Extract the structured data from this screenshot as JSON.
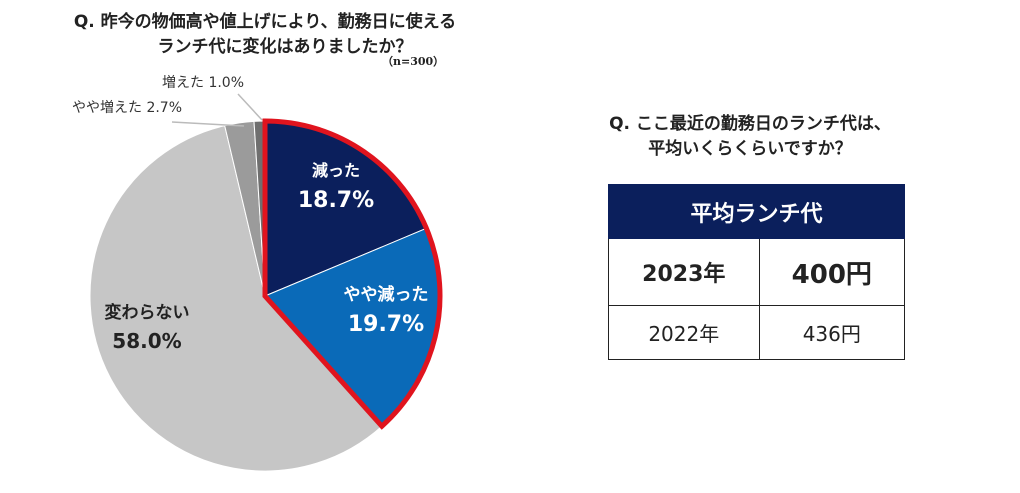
{
  "question_left": {
    "line1": "Q. 昨今の物価高や値上げにより、勤務日に使える",
    "line2": "ランチ代に変化はありましたか？",
    "note": "（n=300）"
  },
  "question_right": {
    "line1": "Q. ここ最近の勤務日のランチ代は、",
    "line2": "平均いくらくらいですか？"
  },
  "chart_data": {
    "type": "pie",
    "series": [
      {
        "label": "減った",
        "pct_text": "18.7%",
        "value": 18.7,
        "color": "#0b1f5c",
        "text_color": "#ffffff"
      },
      {
        "label": "やや減った",
        "pct_text": "19.7%",
        "value": 19.7,
        "color": "#0a6ab8",
        "text_color": "#ffffff"
      },
      {
        "label": "変わらない",
        "pct_text": "58.0%",
        "value": 58.0,
        "color": "#c6c6c6",
        "text_color": "#222222"
      },
      {
        "label": "やや増えた",
        "pct_text": "2.7%",
        "value": 2.7,
        "color": "#9b9b9b",
        "text_color": "#222222"
      },
      {
        "label": "増えた",
        "pct_text": "1.0%",
        "value": 1.0,
        "color": "#6f6f6f",
        "text_color": "#222222"
      }
    ],
    "highlight": "減った + やや減った",
    "highlight_color": "#e0141e",
    "outside_labels": {
      "increased_slightly": "やや増えた 2.7%",
      "increased": "増えた 1.0%"
    }
  },
  "lunch_table": {
    "header": "平均ランチ代",
    "rows": [
      {
        "year": "2023年",
        "value": "400円"
      },
      {
        "year": "2022年",
        "value": "436円"
      }
    ]
  }
}
